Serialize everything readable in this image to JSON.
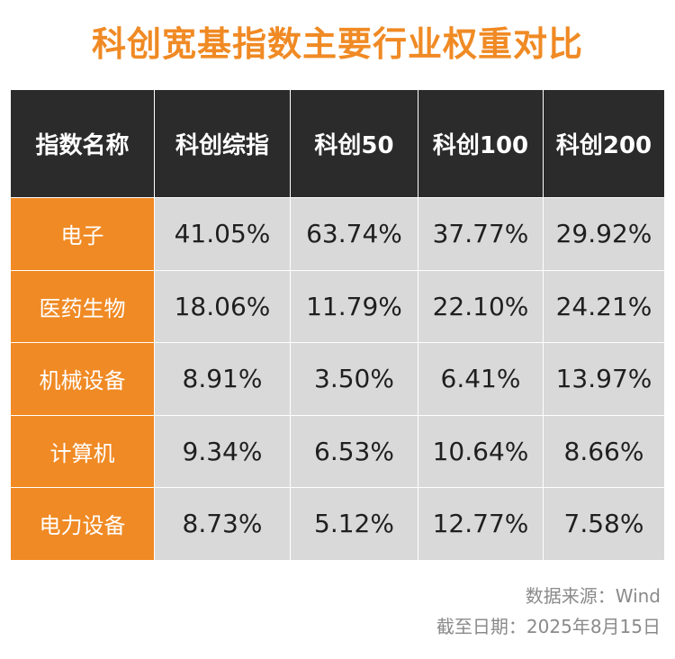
{
  "title": "科创宽基指数主要行业权重对比",
  "colors": {
    "accent": "#f08a24",
    "header_bg": "#2b2b2b",
    "cell_bg": "#d9d9d9"
  },
  "chart_data": {
    "type": "table",
    "title": "科创宽基指数主要行业权重对比",
    "columns": [
      "指数名称",
      "科创综指",
      "科创50",
      "科创100",
      "科创200"
    ],
    "rows": [
      {
        "name": "电子",
        "values": [
          "41.05%",
          "63.74%",
          "37.77%",
          "29.92%"
        ]
      },
      {
        "name": "医药生物",
        "values": [
          "18.06%",
          "11.79%",
          "22.10%",
          "24.21%"
        ]
      },
      {
        "name": "机械设备",
        "values": [
          "8.91%",
          "3.50%",
          "6.41%",
          "13.97%"
        ]
      },
      {
        "name": "计算机",
        "values": [
          "9.34%",
          "6.53%",
          "10.64%",
          "8.66%"
        ]
      },
      {
        "name": "电力设备",
        "values": [
          "8.73%",
          "5.12%",
          "12.77%",
          "7.58%"
        ]
      }
    ]
  },
  "footer": {
    "source": "数据来源：Wind",
    "as_of": "截至日期：2025年8月15日"
  }
}
